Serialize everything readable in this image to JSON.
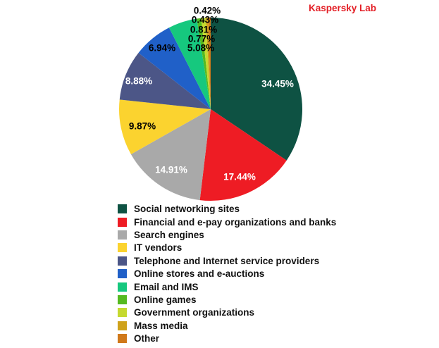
{
  "brand": {
    "label": "Kaspersky Lab",
    "color": "#e31e25"
  },
  "chart_data": {
    "type": "pie",
    "title": "",
    "start_angle_deg": 0,
    "direction": "clockwise",
    "legend_position": "bottom-left",
    "slices": [
      {
        "label": "Social networking sites",
        "value": 34.45,
        "display": "34.45%",
        "color": "#0e5243"
      },
      {
        "label": "Financial and e-pay organizations and banks",
        "value": 17.44,
        "display": "17.44%",
        "color": "#ee1c24"
      },
      {
        "label": "Search engines",
        "value": 14.91,
        "display": "14.91%",
        "color": "#a9a9a9"
      },
      {
        "label": "IT vendors",
        "value": 9.87,
        "display": "9.87%",
        "color": "#fbd32f"
      },
      {
        "label": "Telephone and Internet service providers",
        "value": 8.88,
        "display": "8.88%",
        "color": "#4c5687"
      },
      {
        "label": "Online stores and e-auctions",
        "value": 6.94,
        "display": "6.94%",
        "color": "#2060c8"
      },
      {
        "label": "Email and IMS",
        "value": 5.08,
        "display": "5.08%",
        "color": "#16c87e"
      },
      {
        "label": "Online games",
        "value": 0.77,
        "display": "0.77%",
        "color": "#55ba20"
      },
      {
        "label": "Government organizations",
        "value": 0.81,
        "display": "0.81%",
        "color": "#c5d930"
      },
      {
        "label": "Mass media",
        "value": 0.43,
        "display": "0.43%",
        "color": "#cfa21b"
      },
      {
        "label": "Other",
        "value": 0.42,
        "display": "0.42%",
        "color": "#d0791a"
      }
    ]
  }
}
